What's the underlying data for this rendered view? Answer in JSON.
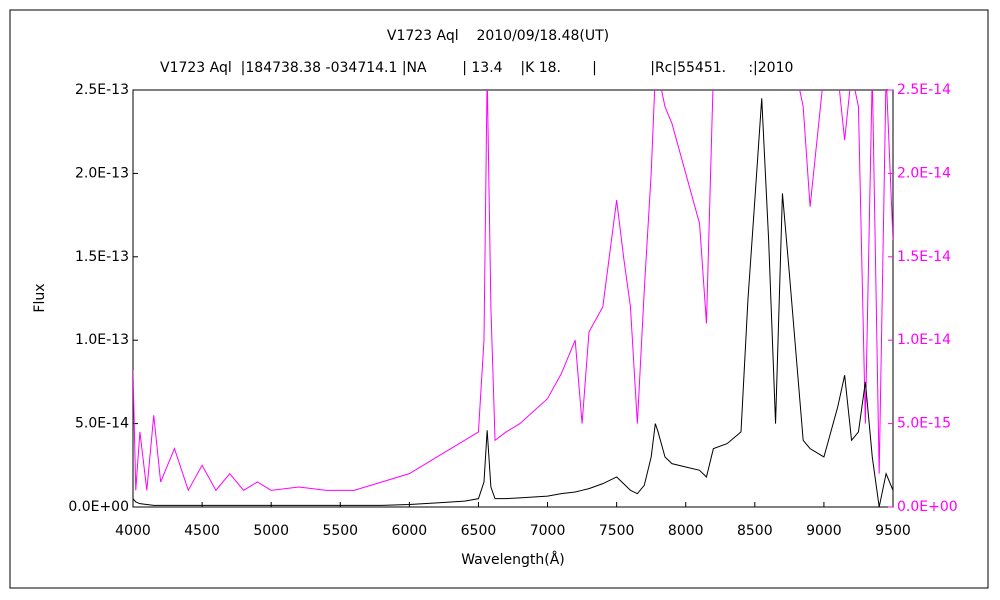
{
  "chart_data": {
    "type": "line",
    "title": "V1723 Aql    2010/09/18.48(UT)",
    "subtitle": "V1723 Aql  |184738.38 -034714.1 |NA        | 13.4    |K 18.       |            |Rc|55451.     :|2010",
    "x_label": "Wavelength(Å)",
    "y_label": "Flux",
    "x": [
      4000,
      4020,
      4050,
      4100,
      4150,
      4200,
      4300,
      4400,
      4500,
      4600,
      4700,
      4800,
      4900,
      5000,
      5200,
      5400,
      5600,
      5800,
      6000,
      6200,
      6400,
      6500,
      6540,
      6563,
      6590,
      6620,
      6700,
      6800,
      7000,
      7100,
      7200,
      7250,
      7300,
      7400,
      7500,
      7550,
      7600,
      7650,
      7700,
      7750,
      7780,
      7800,
      7850,
      7900,
      8000,
      8100,
      8150,
      8200,
      8300,
      8400,
      8450,
      8500,
      8550,
      8600,
      8650,
      8700,
      8750,
      8800,
      8850,
      8900,
      9000,
      9100,
      9150,
      9200,
      9250,
      9300,
      9350,
      9400,
      9450,
      9500
    ],
    "series": [
      {
        "name": "Flux",
        "color": "#000000",
        "values": [
          5e-15,
          3e-15,
          2e-15,
          1.5e-15,
          1e-15,
          1e-15,
          1e-15,
          1e-15,
          1e-15,
          1e-15,
          1e-15,
          1e-15,
          1e-15,
          1e-15,
          1e-15,
          1e-15,
          1e-15,
          1e-15,
          1.5e-15,
          2.5e-15,
          3.5e-15,
          5e-15,
          1.5e-14,
          4.6e-14,
          1.2e-14,
          5e-15,
          5e-15,
          5.5e-15,
          6.5e-15,
          8e-15,
          9e-15,
          1e-14,
          1.1e-14,
          1.4e-14,
          1.8e-14,
          1.4e-14,
          1e-14,
          8e-15,
          1.3e-14,
          3e-14,
          5e-14,
          4.5e-14,
          3e-14,
          2.6e-14,
          2.4e-14,
          2.2e-14,
          1.8e-14,
          3.5e-14,
          3.8e-14,
          4.5e-14,
          1.24e-13,
          1.84e-13,
          2.45e-13,
          1.6e-13,
          5e-14,
          1.88e-13,
          1.4e-13,
          9e-14,
          4e-14,
          3.5e-14,
          3e-14,
          6e-14,
          7.9e-14,
          4e-14,
          4.5e-14,
          7.5e-14,
          3e-14,
          0,
          2e-14,
          1e-14
        ]
      },
      {
        "name": "Flux (right)",
        "color": "#ff00ff",
        "axis": "y2",
        "values": [
          8.2e-15,
          1e-15,
          4.5e-15,
          1e-15,
          5.5e-15,
          1.5e-15,
          3.5e-15,
          1e-15,
          2.5e-15,
          1e-15,
          2e-15,
          1e-15,
          1.5e-15,
          1e-15,
          1.2e-15,
          1e-15,
          1e-15,
          1.5e-15,
          2e-15,
          3e-15,
          4e-15,
          4.5e-15,
          1e-14,
          2.6e-14,
          1.2e-14,
          4e-15,
          4.5e-15,
          5e-15,
          6.5e-15,
          8e-15,
          1e-14,
          5e-15,
          1.05e-14,
          1.2e-14,
          1.84e-14,
          1.5e-14,
          1.2e-14,
          5e-15,
          1.3e-14,
          2e-14,
          2.6e-14,
          2.6e-14,
          2.4e-14,
          2.3e-14,
          2e-14,
          1.7e-14,
          1.1e-14,
          2.6e-14,
          2.7e-14,
          2.6e-14,
          2.6e-14,
          2.6e-14,
          2.6e-14,
          2.6e-14,
          2.6e-14,
          2.6e-14,
          2.6e-14,
          2.6e-14,
          2.4e-14,
          1.8e-14,
          2.6e-14,
          2.6e-14,
          2.2e-14,
          2.6e-14,
          2.4e-14,
          5e-15,
          2.6e-14,
          2e-15,
          2.6e-14,
          1.6e-14
        ]
      }
    ],
    "xlim": [
      4000,
      9500
    ],
    "xticks": [
      4000,
      4500,
      5000,
      5500,
      6000,
      6500,
      7000,
      7500,
      8000,
      8500,
      9000,
      9500
    ],
    "ylim": [
      0,
      2.5e-13
    ],
    "yticks": [
      {
        "value": 0,
        "label": "0.0E+00"
      },
      {
        "value": 5e-14,
        "label": "5.0E-14"
      },
      {
        "value": 1e-13,
        "label": "1.0E-13"
      },
      {
        "value": 1.5e-13,
        "label": "1.5E-13"
      },
      {
        "value": 2e-13,
        "label": "2.0E-13"
      },
      {
        "value": 2.5e-13,
        "label": "2.5E-13"
      }
    ],
    "y2lim": [
      0,
      2.5e-14
    ],
    "y2ticks": [
      {
        "value": 0,
        "label": "0.0E+00"
      },
      {
        "value": 5e-15,
        "label": "5.0E-15"
      },
      {
        "value": 1e-14,
        "label": "1.0E-14"
      },
      {
        "value": 1.5e-14,
        "label": "1.5E-14"
      },
      {
        "value": 2e-14,
        "label": "2.0E-14"
      },
      {
        "value": 2.5e-14,
        "label": "2.5E-14"
      }
    ],
    "y2_color": "#ff00ff",
    "grid": false
  }
}
